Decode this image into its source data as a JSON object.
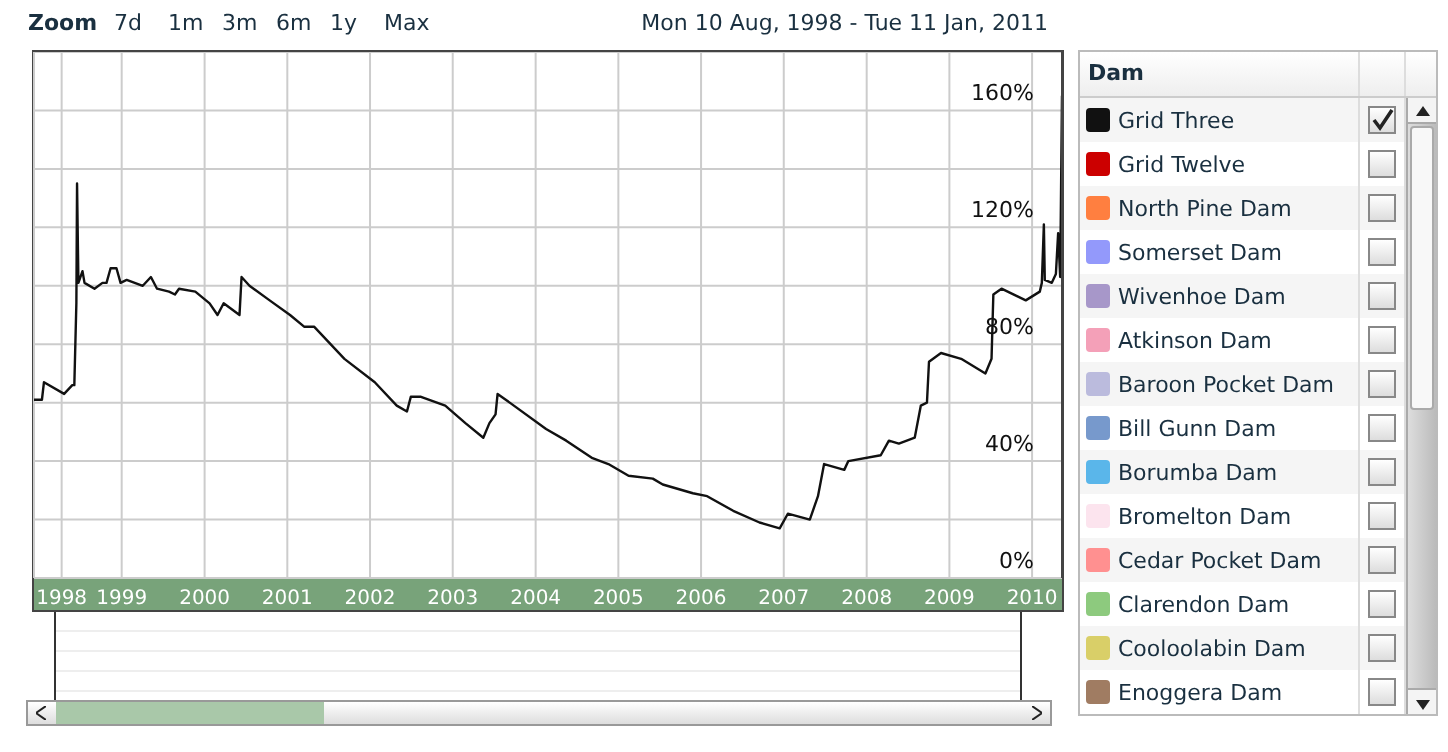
{
  "chart_data": {
    "type": "line",
    "legend_title": "Dam",
    "legend": "right",
    "grid": true,
    "annotations": [
      "Zoom",
      "7d",
      "1m",
      "3m",
      "6m",
      "1y",
      "Max",
      "Mon 10 Aug, 1998 - Tue 11 Jan, 2011"
    ],
    "xlim": [
      "1998-08-10",
      "2011-01-11"
    ],
    "xticks": [
      {
        "value": "1998-12-10",
        "label": "1998"
      },
      {
        "value": "1999-09-01",
        "label": "1999"
      },
      {
        "value": "2000-09-01",
        "label": "2000"
      },
      {
        "value": "2001-09-01",
        "label": "2001"
      },
      {
        "value": "2002-09-01",
        "label": "2002"
      },
      {
        "value": "2003-09-01",
        "label": "2003"
      },
      {
        "value": "2004-09-01",
        "label": "2004"
      },
      {
        "value": "2005-09-01",
        "label": "2005"
      },
      {
        "value": "2006-09-01",
        "label": "2006"
      },
      {
        "value": "2007-09-01",
        "label": "2007"
      },
      {
        "value": "2008-09-01",
        "label": "2008"
      },
      {
        "value": "2009-09-01",
        "label": "2009"
      },
      {
        "value": "2010-09-01",
        "label": "2010"
      }
    ],
    "ylim": [
      0,
      180
    ],
    "yticks": [
      {
        "value": 0,
        "label": "0%"
      },
      {
        "value": 20,
        "label": null
      },
      {
        "value": 40,
        "label": "40%"
      },
      {
        "value": 60,
        "label": null
      },
      {
        "value": 80,
        "label": "80%"
      },
      {
        "value": 100,
        "label": null
      },
      {
        "value": 120,
        "label": "120%"
      },
      {
        "value": 140,
        "label": null
      },
      {
        "value": 160,
        "label": "160%"
      }
    ],
    "x": [
      "1998-08-10",
      "1998-09-14",
      "1998-09-23",
      "1998-12-21",
      "1999-01-26",
      "1999-02-04",
      "1999-02-13",
      "1999-02-16",
      "1999-02-22",
      "1999-03-12",
      "1999-03-21",
      "1999-05-04",
      "1999-06-08",
      "1999-06-26",
      "1999-07-14",
      "1999-08-09",
      "1999-08-27",
      "1999-09-23",
      "1999-12-03",
      "2000-01-08",
      "2000-02-04",
      "2000-03-28",
      "2000-04-23",
      "2000-05-11",
      "2000-07-22",
      "2000-09-23",
      "2000-10-28",
      "2000-11-24",
      "2001-02-02",
      "2001-02-11",
      "2001-03-18",
      "2001-06-15",
      "2001-09-13",
      "2001-11-14",
      "2001-12-28",
      "2002-05-11",
      "2002-09-22",
      "2002-12-28",
      "2003-02-11",
      "2003-02-28",
      "2003-04-14",
      "2003-07-30",
      "2003-10-27",
      "2004-01-14",
      "2004-02-10",
      "2004-03-08",
      "2004-03-17",
      "2004-04-22",
      "2004-10-17",
      "2005-01-14",
      "2005-05-10",
      "2005-07-19",
      "2005-10-16",
      "2006-01-31",
      "2006-03-16",
      "2006-07-27",
      "2006-09-28",
      "2007-01-21",
      "2007-05-17",
      "2007-08-14",
      "2007-09-19",
      "2007-12-25",
      "2008-01-30",
      "2008-02-26",
      "2008-05-25",
      "2008-06-12",
      "2008-11-02",
      "2008-12-08",
      "2009-01-21",
      "2009-04-01",
      "2009-04-28",
      "2009-05-25",
      "2009-06-03",
      "2009-07-26",
      "2009-10-23",
      "2010-02-07",
      "2010-03-06",
      "2010-03-14",
      "2010-04-19",
      "2010-08-04",
      "2010-10-05",
      "2010-10-14",
      "2010-10-23",
      "2010-10-27",
      "2010-11-27",
      "2010-12-15",
      "2010-12-25",
      "2011-01-03",
      "2011-01-11"
    ],
    "series": [
      {
        "name": "Grid Three",
        "color": "#111111",
        "values": [
          61,
          61,
          67,
          63,
          66,
          66,
          94,
          135,
          101,
          105,
          101,
          99,
          101,
          101,
          106,
          106,
          101,
          102,
          100,
          103,
          99,
          98,
          97,
          99,
          98,
          94,
          90,
          94,
          90,
          103,
          100,
          95,
          90,
          86,
          86,
          75,
          67,
          59,
          57,
          62,
          62,
          59,
          53,
          48,
          53,
          56,
          63,
          61,
          51,
          47,
          41,
          39,
          35,
          34,
          32,
          29,
          28,
          23,
          19,
          17,
          22,
          20,
          28,
          39,
          37,
          40,
          42,
          47,
          46,
          48,
          59,
          60,
          74,
          77,
          75,
          70,
          75,
          97,
          99,
          95,
          98,
          101,
          121,
          102,
          101,
          104,
          118,
          103,
          165
        ]
      },
      {
        "name": "Grid Twelve",
        "color": "#cc0000",
        "values": [
          null,
          null,
          null,
          null,
          null,
          null,
          null,
          null,
          null,
          null,
          null,
          null,
          null,
          null,
          null,
          null,
          null,
          null,
          null,
          null,
          null,
          null,
          null,
          null,
          null,
          null,
          null,
          null,
          null,
          null,
          null,
          null,
          null,
          null,
          null,
          null,
          null,
          null,
          null,
          null,
          null,
          null,
          null,
          null,
          null,
          null,
          null,
          null,
          null,
          null,
          null,
          null,
          null,
          null,
          null,
          null,
          null,
          null,
          null,
          null,
          null,
          null,
          null,
          null,
          null,
          null,
          null,
          null,
          null,
          null,
          null,
          null,
          null,
          null,
          null,
          null,
          null,
          null,
          null,
          null,
          null,
          null,
          null,
          null,
          null,
          null,
          null,
          null,
          null
        ]
      },
      {
        "name": "North Pine Dam",
        "color": "#ff7f40",
        "values": [
          null,
          null,
          null,
          null,
          null,
          null,
          null,
          null,
          null,
          null,
          null,
          null,
          null,
          null,
          null,
          null,
          null,
          null,
          null,
          null,
          null,
          null,
          null,
          null,
          null,
          null,
          null,
          null,
          null,
          null,
          null,
          null,
          null,
          null,
          null,
          null,
          null,
          null,
          null,
          null,
          null,
          null,
          null,
          null,
          null,
          null,
          null,
          null,
          null,
          null,
          null,
          null,
          null,
          null,
          null,
          null,
          null,
          null,
          null,
          null,
          null,
          null,
          null,
          null,
          null,
          null,
          null,
          null,
          null,
          null,
          null,
          null,
          null,
          null,
          null,
          null,
          null,
          null,
          null,
          null,
          null,
          null,
          null,
          null,
          null,
          null,
          null,
          null,
          null
        ]
      },
      {
        "name": "Somerset Dam",
        "color": "#9399fb",
        "values": [
          null,
          null,
          null,
          null,
          null,
          null,
          null,
          null,
          null,
          null,
          null,
          null,
          null,
          null,
          null,
          null,
          null,
          null,
          null,
          null,
          null,
          null,
          null,
          null,
          null,
          null,
          null,
          null,
          null,
          null,
          null,
          null,
          null,
          null,
          null,
          null,
          null,
          null,
          null,
          null,
          null,
          null,
          null,
          null,
          null,
          null,
          null,
          null,
          null,
          null,
          null,
          null,
          null,
          null,
          null,
          null,
          null,
          null,
          null,
          null,
          null,
          null,
          null,
          null,
          null,
          null,
          null,
          null,
          null,
          null,
          null,
          null,
          null,
          null,
          null,
          null,
          null,
          null,
          null,
          null,
          null,
          null,
          null,
          null,
          null,
          null,
          null,
          null,
          null
        ]
      },
      {
        "name": "Wivenhoe Dam",
        "color": "#a797c9",
        "values": [
          null,
          null,
          null,
          null,
          null,
          null,
          null,
          null,
          null,
          null,
          null,
          null,
          null,
          null,
          null,
          null,
          null,
          null,
          null,
          null,
          null,
          null,
          null,
          null,
          null,
          null,
          null,
          null,
          null,
          null,
          null,
          null,
          null,
          null,
          null,
          null,
          null,
          null,
          null,
          null,
          null,
          null,
          null,
          null,
          null,
          null,
          null,
          null,
          null,
          null,
          null,
          null,
          null,
          null,
          null,
          null,
          null,
          null,
          null,
          null,
          null,
          null,
          null,
          null,
          null,
          null,
          null,
          null,
          null,
          null,
          null,
          null,
          null,
          null,
          null,
          null,
          null,
          null,
          null,
          null,
          null,
          null,
          null,
          null,
          null,
          null,
          null,
          null,
          null
        ]
      },
      {
        "name": "Atkinson Dam",
        "color": "#f4a0b8",
        "values": [
          null,
          null,
          null,
          null,
          null,
          null,
          null,
          null,
          null,
          null,
          null,
          null,
          null,
          null,
          null,
          null,
          null,
          null,
          null,
          null,
          null,
          null,
          null,
          null,
          null,
          null,
          null,
          null,
          null,
          null,
          null,
          null,
          null,
          null,
          null,
          null,
          null,
          null,
          null,
          null,
          null,
          null,
          null,
          null,
          null,
          null,
          null,
          null,
          null,
          null,
          null,
          null,
          null,
          null,
          null,
          null,
          null,
          null,
          null,
          null,
          null,
          null,
          null,
          null,
          null,
          null,
          null,
          null,
          null,
          null,
          null,
          null,
          null,
          null,
          null,
          null,
          null,
          null,
          null,
          null,
          null,
          null,
          null,
          null,
          null,
          null,
          null,
          null,
          null
        ]
      },
      {
        "name": "Baroon Pocket Dam",
        "color": "#bbbbdd",
        "values": [
          null,
          null,
          null,
          null,
          null,
          null,
          null,
          null,
          null,
          null,
          null,
          null,
          null,
          null,
          null,
          null,
          null,
          null,
          null,
          null,
          null,
          null,
          null,
          null,
          null,
          null,
          null,
          null,
          null,
          null,
          null,
          null,
          null,
          null,
          null,
          null,
          null,
          null,
          null,
          null,
          null,
          null,
          null,
          null,
          null,
          null,
          null,
          null,
          null,
          null,
          null,
          null,
          null,
          null,
          null,
          null,
          null,
          null,
          null,
          null,
          null,
          null,
          null,
          null,
          null,
          null,
          null,
          null,
          null,
          null,
          null,
          null,
          null,
          null,
          null,
          null,
          null,
          null,
          null,
          null,
          null,
          null,
          null,
          null,
          null,
          null,
          null,
          null,
          null
        ]
      },
      {
        "name": "Bill Gunn Dam",
        "color": "#7799cc",
        "values": [
          null,
          null,
          null,
          null,
          null,
          null,
          null,
          null,
          null,
          null,
          null,
          null,
          null,
          null,
          null,
          null,
          null,
          null,
          null,
          null,
          null,
          null,
          null,
          null,
          null,
          null,
          null,
          null,
          null,
          null,
          null,
          null,
          null,
          null,
          null,
          null,
          null,
          null,
          null,
          null,
          null,
          null,
          null,
          null,
          null,
          null,
          null,
          null,
          null,
          null,
          null,
          null,
          null,
          null,
          null,
          null,
          null,
          null,
          null,
          null,
          null,
          null,
          null,
          null,
          null,
          null,
          null,
          null,
          null,
          null,
          null,
          null,
          null,
          null,
          null,
          null,
          null,
          null,
          null,
          null,
          null,
          null,
          null,
          null,
          null,
          null,
          null,
          null,
          null
        ]
      },
      {
        "name": "Borumba Dam",
        "color": "#5ab6ea",
        "values": [
          null,
          null,
          null,
          null,
          null,
          null,
          null,
          null,
          null,
          null,
          null,
          null,
          null,
          null,
          null,
          null,
          null,
          null,
          null,
          null,
          null,
          null,
          null,
          null,
          null,
          null,
          null,
          null,
          null,
          null,
          null,
          null,
          null,
          null,
          null,
          null,
          null,
          null,
          null,
          null,
          null,
          null,
          null,
          null,
          null,
          null,
          null,
          null,
          null,
          null,
          null,
          null,
          null,
          null,
          null,
          null,
          null,
          null,
          null,
          null,
          null,
          null,
          null,
          null,
          null,
          null,
          null,
          null,
          null,
          null,
          null,
          null,
          null,
          null,
          null,
          null,
          null,
          null,
          null,
          null,
          null,
          null,
          null,
          null,
          null,
          null,
          null,
          null,
          null
        ]
      },
      {
        "name": "Bromelton Dam",
        "color": "#fce4ee",
        "values": [
          null,
          null,
          null,
          null,
          null,
          null,
          null,
          null,
          null,
          null,
          null,
          null,
          null,
          null,
          null,
          null,
          null,
          null,
          null,
          null,
          null,
          null,
          null,
          null,
          null,
          null,
          null,
          null,
          null,
          null,
          null,
          null,
          null,
          null,
          null,
          null,
          null,
          null,
          null,
          null,
          null,
          null,
          null,
          null,
          null,
          null,
          null,
          null,
          null,
          null,
          null,
          null,
          null,
          null,
          null,
          null,
          null,
          null,
          null,
          null,
          null,
          null,
          null,
          null,
          null,
          null,
          null,
          null,
          null,
          null,
          null,
          null,
          null,
          null,
          null,
          null,
          null,
          null,
          null,
          null,
          null,
          null,
          null,
          null,
          null,
          null,
          null,
          null,
          null
        ]
      },
      {
        "name": "Cedar Pocket Dam",
        "color": "#ff9090",
        "values": [
          null,
          null,
          null,
          null,
          null,
          null,
          null,
          null,
          null,
          null,
          null,
          null,
          null,
          null,
          null,
          null,
          null,
          null,
          null,
          null,
          null,
          null,
          null,
          null,
          null,
          null,
          null,
          null,
          null,
          null,
          null,
          null,
          null,
          null,
          null,
          null,
          null,
          null,
          null,
          null,
          null,
          null,
          null,
          null,
          null,
          null,
          null,
          null,
          null,
          null,
          null,
          null,
          null,
          null,
          null,
          null,
          null,
          null,
          null,
          null,
          null,
          null,
          null,
          null,
          null,
          null,
          null,
          null,
          null,
          null,
          null,
          null,
          null,
          null,
          null,
          null,
          null,
          null,
          null,
          null,
          null,
          null,
          null,
          null,
          null,
          null,
          null,
          null,
          null
        ]
      },
      {
        "name": "Clarendon Dam",
        "color": "#8dca7e",
        "values": [
          null,
          null,
          null,
          null,
          null,
          null,
          null,
          null,
          null,
          null,
          null,
          null,
          null,
          null,
          null,
          null,
          null,
          null,
          null,
          null,
          null,
          null,
          null,
          null,
          null,
          null,
          null,
          null,
          null,
          null,
          null,
          null,
          null,
          null,
          null,
          null,
          null,
          null,
          null,
          null,
          null,
          null,
          null,
          null,
          null,
          null,
          null,
          null,
          null,
          null,
          null,
          null,
          null,
          null,
          null,
          null,
          null,
          null,
          null,
          null,
          null,
          null,
          null,
          null,
          null,
          null,
          null,
          null,
          null,
          null,
          null,
          null,
          null,
          null,
          null,
          null,
          null,
          null,
          null,
          null,
          null,
          null,
          null,
          null,
          null,
          null,
          null,
          null,
          null
        ]
      },
      {
        "name": "Cooloolabin Dam",
        "color": "#d9cf68",
        "values": [
          null,
          null,
          null,
          null,
          null,
          null,
          null,
          null,
          null,
          null,
          null,
          null,
          null,
          null,
          null,
          null,
          null,
          null,
          null,
          null,
          null,
          null,
          null,
          null,
          null,
          null,
          null,
          null,
          null,
          null,
          null,
          null,
          null,
          null,
          null,
          null,
          null,
          null,
          null,
          null,
          null,
          null,
          null,
          null,
          null,
          null,
          null,
          null,
          null,
          null,
          null,
          null,
          null,
          null,
          null,
          null,
          null,
          null,
          null,
          null,
          null,
          null,
          null,
          null,
          null,
          null,
          null,
          null,
          null,
          null,
          null,
          null,
          null,
          null,
          null,
          null,
          null,
          null,
          null,
          null,
          null,
          null,
          null,
          null,
          null,
          null,
          null,
          null,
          null
        ]
      },
      {
        "name": "Enoggera Dam",
        "color": "#a07c62",
        "values": [
          null,
          null,
          null,
          null,
          null,
          null,
          null,
          null,
          null,
          null,
          null,
          null,
          null,
          null,
          null,
          null,
          null,
          null,
          null,
          null,
          null,
          null,
          null,
          null,
          null,
          null,
          null,
          null,
          null,
          null,
          null,
          null,
          null,
          null,
          null,
          null,
          null,
          null,
          null,
          null,
          null,
          null,
          null,
          null,
          null,
          null,
          null,
          null,
          null,
          null,
          null,
          null,
          null,
          null,
          null,
          null,
          null,
          null,
          null,
          null,
          null,
          null,
          null,
          null,
          null,
          null,
          null,
          null,
          null,
          null,
          null,
          null,
          null,
          null,
          null,
          null,
          null,
          null,
          null,
          null,
          null,
          null,
          null,
          null,
          null,
          null,
          null,
          null,
          null
        ]
      }
    ]
  }
}
